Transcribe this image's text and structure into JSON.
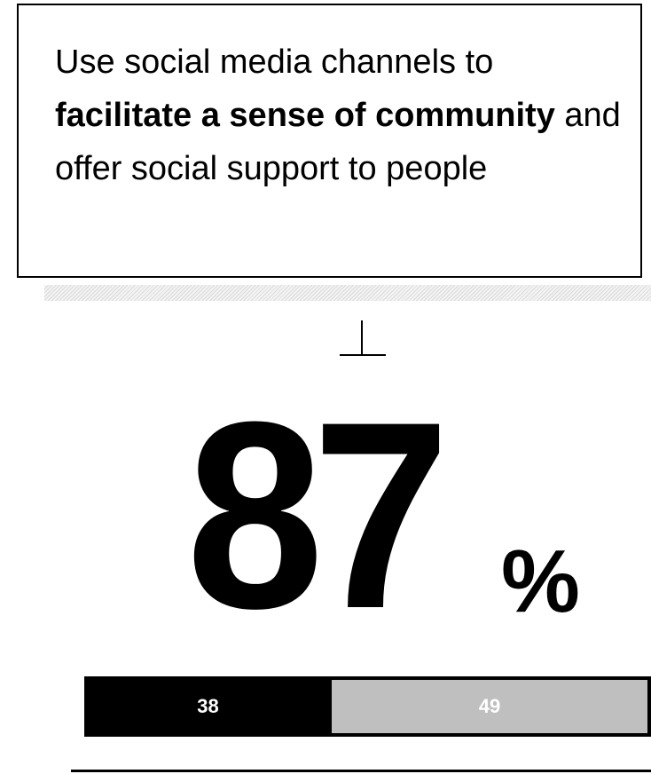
{
  "statement": {
    "line1": "Use social media channels to",
    "bold": "facilitate a sense of community",
    "rest": "and offer social support to people"
  },
  "headline": {
    "value": "87",
    "unit": "%"
  },
  "colors": {
    "segment_1": "#000000",
    "segment_2": "#bfbfbf",
    "text_on_bar": "#ffffff"
  },
  "chart_data": {
    "type": "bar",
    "orientation": "horizontal",
    "stacked": true,
    "total": 87,
    "total_label": "87%",
    "categories": [
      ""
    ],
    "series": [
      {
        "values": [
          38
        ],
        "label": "38"
      },
      {
        "values": [
          49
        ],
        "label": "49"
      }
    ]
  }
}
